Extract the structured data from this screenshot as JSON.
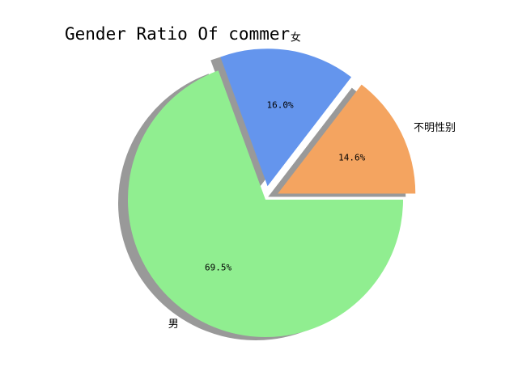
{
  "chart_data": {
    "type": "pie",
    "title": "Gender Ratio Of commer",
    "slices": [
      {
        "label": "不明性别",
        "value": 14.6,
        "pct_label": "14.6%",
        "color": "#f4a460",
        "exploded": true
      },
      {
        "label": "女",
        "value": 16.0,
        "pct_label": "16.0%",
        "color": "#6495ed",
        "exploded": true
      },
      {
        "label": "男",
        "value": 69.5,
        "pct_label": "69.5%",
        "color": "#90ee90",
        "exploded": false
      }
    ],
    "start_angle_deg": 0,
    "direction": "counterclockwise",
    "shadow": true,
    "legend": "none"
  }
}
